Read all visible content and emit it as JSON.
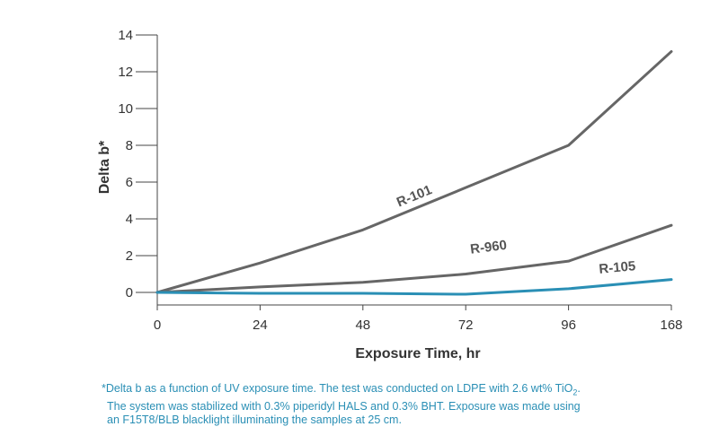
{
  "chart_data": {
    "type": "line",
    "categories": [
      "0",
      "24",
      "48",
      "72",
      "96",
      "168"
    ],
    "xlabel": "Exposure Time, hr",
    "ylabel": "Delta b*",
    "ylim": [
      0,
      14
    ],
    "yticks": [
      "0",
      "2",
      "4",
      "6",
      "8",
      "10",
      "12",
      "14"
    ],
    "grid": false,
    "series": [
      {
        "name": "R-101",
        "values": [
          0,
          1.6,
          3.4,
          5.7,
          8.0,
          13.1
        ],
        "color": "#666666"
      },
      {
        "name": "R-960",
        "values": [
          0,
          0.3,
          0.55,
          1.0,
          1.7,
          3.65
        ],
        "color": "#666666"
      },
      {
        "name": "R-105",
        "values": [
          0,
          -0.05,
          -0.05,
          -0.1,
          0.2,
          0.7
        ],
        "color": "#2a8fb5"
      }
    ]
  },
  "caption": {
    "line1_pre": "*Delta b as a function of UV exposure time. The test was conducted on LDPE with 2.6 wt% TiO",
    "line1_sub": "2",
    "line1_post": ".",
    "line2": "The system was stabilized with 0.3% piperidyl HALS and 0.3% BHT. Exposure was made using",
    "line3": "an F15T8/BLB blacklight illuminating the samples at 25 cm."
  }
}
